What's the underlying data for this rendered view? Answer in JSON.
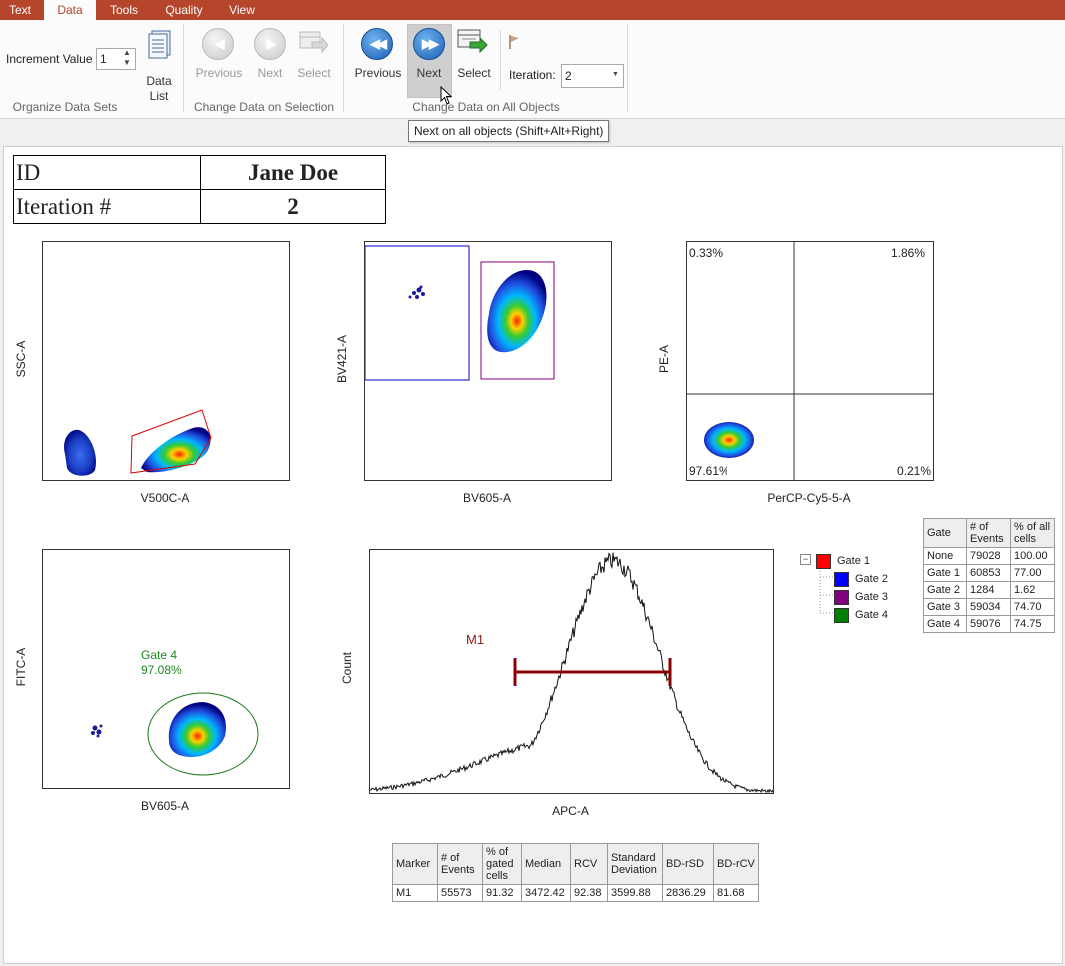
{
  "menu": {
    "tabs": [
      "Text",
      "Data",
      "Tools",
      "Quality",
      "View"
    ],
    "active": "Data"
  },
  "ribbon": {
    "organize": {
      "increment_label": "Increment Value",
      "increment_value": "1",
      "data_list_label": "Data List",
      "group_label": "Organize Data Sets"
    },
    "selection": {
      "previous": "Previous",
      "next": "Next",
      "select": "Select",
      "group_label": "Change Data on Selection"
    },
    "all_objects": {
      "previous": "Previous",
      "next": "Next",
      "select": "Select",
      "iteration_label": "Iteration:",
      "iteration_value": "2",
      "group_label": "Change Data on All Objects"
    },
    "tooltip": "Next on all objects (Shift+Alt+Right)"
  },
  "id_table": {
    "id_label": "ID",
    "id_value": "Jane Doe",
    "iteration_label": "Iteration #",
    "iteration_value": "2"
  },
  "plots": {
    "p1": {
      "xlabel": "V500C-A",
      "ylabel": "SSC-A"
    },
    "p2": {
      "xlabel": "BV605-A",
      "ylabel": "BV421-A"
    },
    "p3": {
      "xlabel": "PerCP-Cy5-5-A",
      "ylabel": "PE-A",
      "q_tl": "0.33%",
      "q_tr": "1.86%",
      "q_bl": "97.61%",
      "q_br": "0.21%"
    },
    "p4": {
      "xlabel": "BV605-A",
      "ylabel": "FITC-A",
      "gate_name": "Gate 4",
      "gate_pct": "97.08%"
    },
    "p5": {
      "xlabel": "APC-A",
      "ylabel": "Count",
      "marker": "M1"
    }
  },
  "gate_tree": [
    {
      "label": "Gate 1",
      "color": "#ff0000"
    },
    {
      "label": "Gate 2",
      "color": "#0000ff"
    },
    {
      "label": "Gate 3",
      "color": "#800080"
    },
    {
      "label": "Gate 4",
      "color": "#008000"
    }
  ],
  "gate_stats": {
    "headers": [
      "Gate",
      "# of Events",
      "% of all cells"
    ],
    "rows": [
      [
        "None",
        "79028",
        "100.00"
      ],
      [
        "Gate 1",
        "60853",
        "77.00"
      ],
      [
        "Gate 2",
        "1284",
        "1.62"
      ],
      [
        "Gate 3",
        "59034",
        "74.70"
      ],
      [
        "Gate 4",
        "59076",
        "74.75"
      ]
    ]
  },
  "marker_stats": {
    "headers": [
      "Marker",
      "# of Events",
      "% of gated cells",
      "Median",
      "RCV",
      "Standard Deviation",
      "BD-rSD",
      "BD-rCV"
    ],
    "rows": [
      [
        "M1",
        "55573",
        "91.32",
        "3472.42",
        "92.38",
        "3599.88",
        "2836.29",
        "81.68"
      ]
    ]
  },
  "colors": {
    "brand": "#b5452b",
    "gate1": "#ff0000",
    "gate2": "#0000ff",
    "gate3": "#800080",
    "gate4": "#008000",
    "marker": "#8b0000"
  }
}
